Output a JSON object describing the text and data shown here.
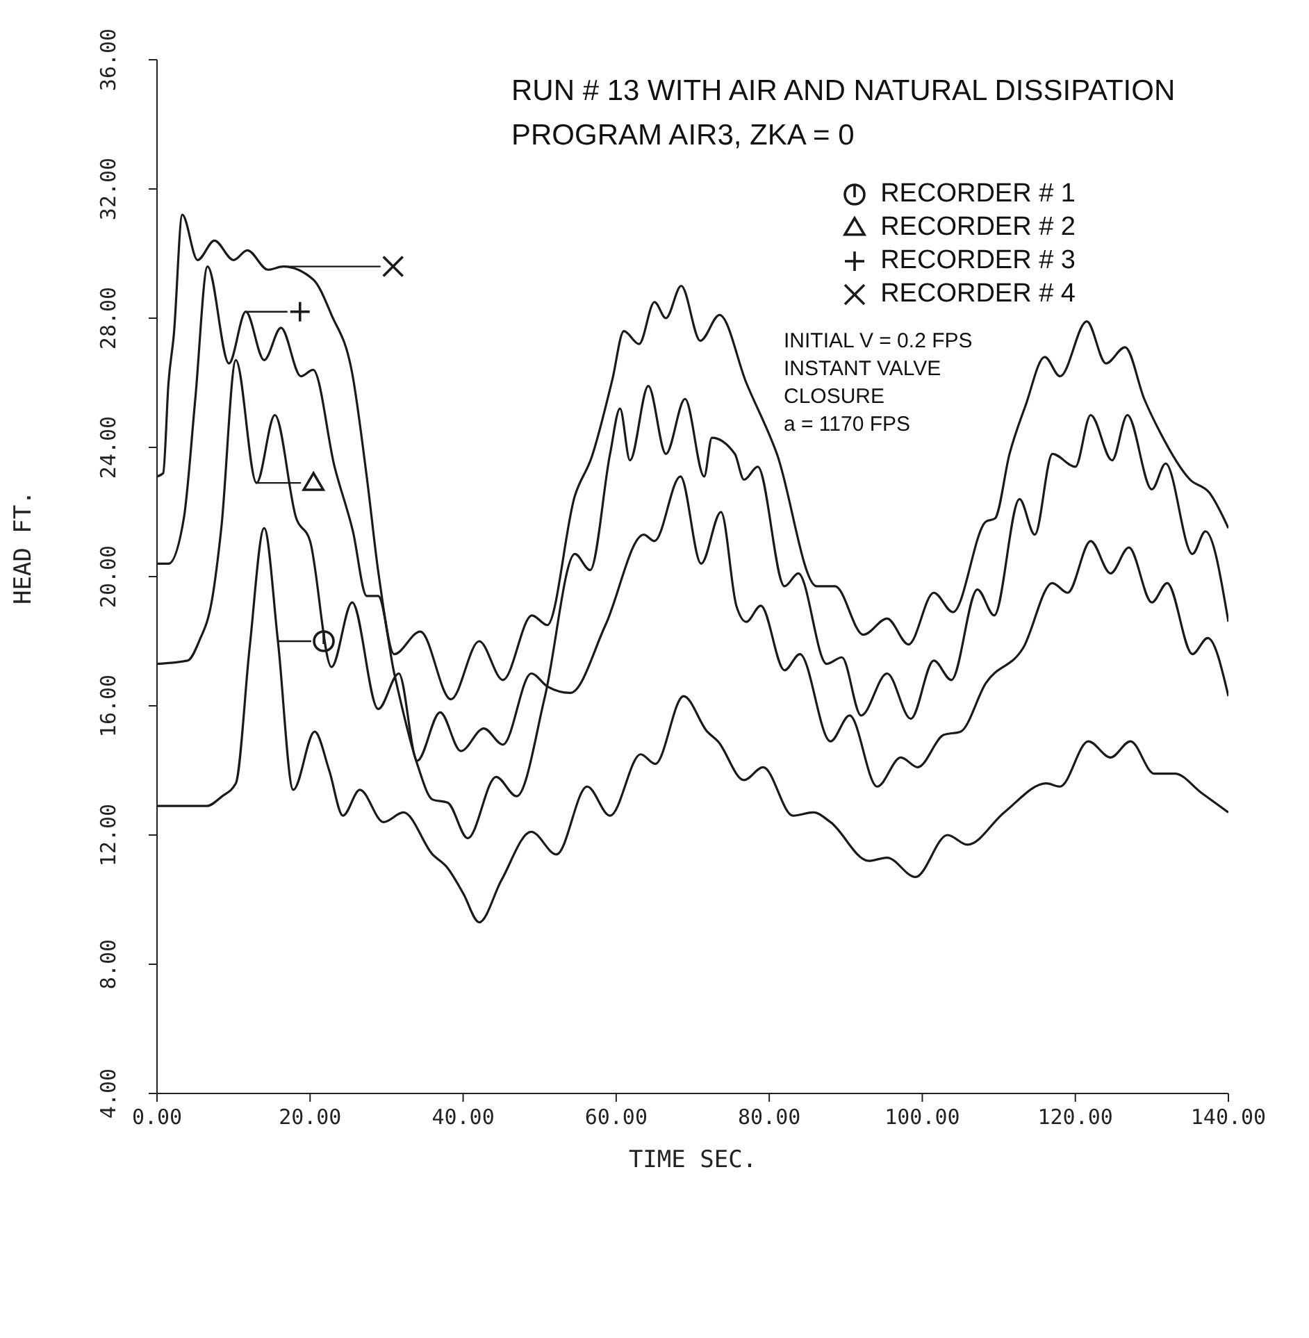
{
  "chart_data": {
    "type": "line",
    "title": "RUN # 13 WITH AIR AND NATURAL DISSIPATION",
    "subtitle": "PROGRAM AIR3, ZKA = 0",
    "xlabel": "TIME SEC.",
    "ylabel": "HEAD FT.",
    "annotations": [
      "INITIAL V = 0.2 FPS",
      "INSTANT VALVE CLOSURE",
      "a = 1170 FPS"
    ],
    "xlim": [
      0,
      140
    ],
    "ylim": [
      4,
      36
    ],
    "xticks": [
      {
        "value": 0,
        "label": "0.00"
      },
      {
        "value": 20,
        "label": "20.00"
      },
      {
        "value": 40,
        "label": "40.00"
      },
      {
        "value": 60,
        "label": "60.00"
      },
      {
        "value": 80,
        "label": "80.00"
      },
      {
        "value": 100,
        "label": "100.00"
      },
      {
        "value": 120,
        "label": "120.00"
      },
      {
        "value": 140,
        "label": "140.00"
      }
    ],
    "yticks": [
      {
        "value": 4,
        "label": "4.00"
      },
      {
        "value": 8,
        "label": "8.00"
      },
      {
        "value": 12,
        "label": "12.00"
      },
      {
        "value": 16,
        "label": "16.00"
      },
      {
        "value": 20,
        "label": "20.00"
      },
      {
        "value": 24,
        "label": "24.00"
      },
      {
        "value": 28,
        "label": "28.00"
      },
      {
        "value": 32,
        "label": "32.00"
      },
      {
        "value": 36,
        "label": "36.00"
      }
    ],
    "grid": false,
    "legend": "top right",
    "marker": "none",
    "line_style": "solid",
    "series": [
      {
        "name": "RECORDER # 1",
        "color": "#1a1a1a",
        "x": [
          0,
          6.5,
          8.5,
          10.3,
          12.1,
          14,
          15.8,
          17.8,
          20.6,
          22.5,
          24.3,
          26.5,
          29.6,
          32.2,
          36,
          37.9,
          40,
          42.1,
          45,
          48.9,
          52.2,
          56.2,
          59.2,
          63.2,
          65.1,
          68.8,
          71.9,
          73.3,
          76.7,
          79.2,
          83.1,
          85.8,
          88,
          93,
          95.4,
          99.1,
          103.3,
          105.9,
          110.7,
          116.2,
          118,
          121.7,
          124.6,
          127.2,
          130.3,
          133,
          136.5,
          140
        ],
        "values": [
          12.9,
          12.9,
          13.2,
          13.6,
          17.8,
          21.5,
          18,
          13.4,
          15.2,
          14,
          12.6,
          13.4,
          12.4,
          12.7,
          11.4,
          11.0,
          10.2,
          9.3,
          10.6,
          12.1,
          11.4,
          13.5,
          12.6,
          14.5,
          14.2,
          16.3,
          15.2,
          14.9,
          13.7,
          14.1,
          12.6,
          12.7,
          12.4,
          11.2,
          11.3,
          10.7,
          12.0,
          11.7,
          12.7,
          13.6,
          13.5,
          14.9,
          14.4,
          14.9,
          13.9,
          13.9,
          13.3,
          12.7
        ]
      },
      {
        "name": "RECORDER # 2",
        "color": "#1a1a1a",
        "x": [
          0,
          4,
          5.5,
          7.2,
          8.4,
          10.3,
          13,
          15.4,
          18.2,
          20,
          22.8,
          25.5,
          28.9,
          31.6,
          34,
          37,
          39.7,
          42.7,
          45.2,
          48.9,
          51,
          54,
          58.6,
          63.6,
          65,
          68.4,
          71.1,
          73.7,
          75.7,
          77,
          78.9,
          82,
          84,
          88,
          90.5,
          94.1,
          97.2,
          99.4,
          102.8,
          105,
          108.3,
          113.2,
          117,
          119,
          122,
          124.6,
          127,
          130,
          132,
          135.3,
          137.3,
          140
        ],
        "values": [
          17.3,
          17.4,
          18,
          19.3,
          21.5,
          26.7,
          22.9,
          25.0,
          21.8,
          21.1,
          17.2,
          19.2,
          15.9,
          17.0,
          14.3,
          15.8,
          14.6,
          15.3,
          14.8,
          17.0,
          16.6,
          16.4,
          18.5,
          21.3,
          21.1,
          23.1,
          20.4,
          22.0,
          19.1,
          18.6,
          19.1,
          17.1,
          17.6,
          14.9,
          15.7,
          13.5,
          14.4,
          14.1,
          15.1,
          15.2,
          16.7,
          17.8,
          19.8,
          19.5,
          21.1,
          20.1,
          20.9,
          19.2,
          19.8,
          17.6,
          18.1,
          16.3
        ]
      },
      {
        "name": "RECORDER # 3",
        "color": "#1a1a1a",
        "x": [
          0,
          1.5,
          3.5,
          5,
          6.6,
          9.4,
          11.6,
          14,
          16.2,
          18.8,
          20.4,
          23.2,
          25.6,
          27.4,
          28.9,
          31,
          34,
          36,
          38,
          40.6,
          44.3,
          47,
          50.7,
          54.6,
          56.6,
          59.2,
          60.5,
          61.8,
          64.2,
          66.5,
          69,
          71.5,
          72.5,
          75.5,
          76.7,
          78.5,
          82,
          83.8,
          87.5,
          89.5,
          92,
          95.4,
          98.5,
          101.5,
          103.8,
          107.2,
          109.4,
          112.7,
          114.7,
          117,
          120,
          122,
          124.8,
          126.8,
          130,
          131.8,
          135.3,
          137,
          140
        ],
        "values": [
          20.4,
          20.4,
          21.8,
          25.5,
          29.6,
          26.6,
          28.2,
          26.7,
          27.7,
          26.2,
          26.4,
          23.4,
          21.4,
          19.4,
          19.4,
          17.0,
          14.2,
          13.1,
          13.0,
          11.9,
          13.8,
          13.2,
          16.3,
          20.7,
          20.2,
          23.8,
          25.2,
          23.6,
          25.9,
          23.8,
          25.5,
          23.1,
          24.3,
          23.8,
          23.0,
          23.4,
          19.7,
          20.1,
          17.3,
          17.5,
          15.7,
          17.0,
          15.6,
          17.4,
          16.8,
          19.6,
          18.8,
          22.4,
          21.3,
          23.8,
          23.4,
          25.0,
          23.6,
          25.0,
          22.7,
          23.5,
          20.7,
          21.4,
          18.6
        ]
      },
      {
        "name": "RECORDER # 4",
        "color": "#1a1a1a",
        "x": [
          0,
          0.8,
          1.5,
          2.2,
          3.3,
          5.3,
          7.5,
          10,
          11.8,
          14.5,
          16.5,
          20.4,
          22.8,
          25.5,
          27.4,
          29,
          31,
          34.4,
          38.4,
          42.1,
          45.2,
          49,
          51,
          54.6,
          56.8,
          59.5,
          61,
          63,
          65,
          66.5,
          68.5,
          71,
          73.5,
          77,
          81,
          86.2,
          88.6,
          92.3,
          95.4,
          98.2,
          101.5,
          104,
          108.3,
          109.5,
          111.4,
          113.5,
          116,
          118,
          121.5,
          124,
          126.5,
          129,
          131,
          135,
          137.5,
          140
        ],
        "values": [
          23.1,
          23.2,
          26,
          27.5,
          31.2,
          29.8,
          30.4,
          29.8,
          30.1,
          29.5,
          29.6,
          29.2,
          28.1,
          26.3,
          23.1,
          20,
          17.6,
          18.3,
          16.2,
          18.0,
          16.8,
          18.8,
          18.5,
          22.5,
          23.7,
          26.1,
          27.6,
          27.2,
          28.5,
          28.0,
          29.0,
          27.3,
          28.1,
          26,
          23.8,
          19.7,
          19.7,
          18.2,
          18.7,
          17.9,
          19.5,
          18.9,
          21.7,
          21.8,
          23.8,
          25.3,
          26.8,
          26.2,
          27.9,
          26.6,
          27.1,
          25.5,
          24.5,
          23.0,
          22.6,
          21.5
        ]
      }
    ]
  }
}
